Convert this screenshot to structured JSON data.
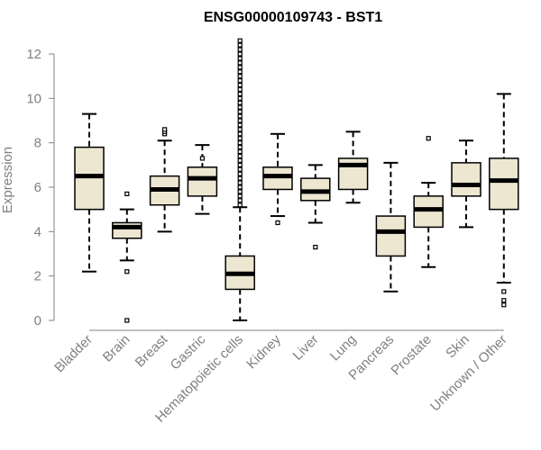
{
  "chart_data": {
    "type": "boxplot",
    "title": "ENSG00000109743 - BST1",
    "xlabel": "",
    "ylabel": "Expression",
    "ylim": [
      0,
      12
    ],
    "yticks": [
      "0",
      "2",
      "4",
      "6",
      "8",
      "10",
      "12"
    ],
    "categories": [
      "Bladder",
      "Brain",
      "Breast",
      "Gastric",
      "Hematopoietic cells",
      "Kidney",
      "Liver",
      "Lung",
      "Pancreas",
      "Prostate",
      "Skin",
      "Unknown / Other"
    ],
    "boxes": [
      {
        "category": "Bladder",
        "whisker_low": 2.2,
        "q1": 5.0,
        "median": 6.5,
        "q3": 7.8,
        "whisker_high": 9.3,
        "outliers": []
      },
      {
        "category": "Brain",
        "whisker_low": 2.7,
        "q1": 3.7,
        "median": 4.2,
        "q3": 4.4,
        "whisker_high": 5.0,
        "outliers": [
          0.0,
          2.2,
          5.7
        ]
      },
      {
        "category": "Breast",
        "whisker_low": 4.0,
        "q1": 5.2,
        "median": 5.9,
        "q3": 6.5,
        "whisker_high": 8.1,
        "outliers": [
          8.4,
          8.5,
          8.6
        ]
      },
      {
        "category": "Gastric",
        "whisker_low": 4.8,
        "q1": 5.6,
        "median": 6.4,
        "q3": 6.9,
        "whisker_high": 7.9,
        "outliers": [
          7.3
        ]
      },
      {
        "category": "Hematopoietic cells",
        "whisker_low": 0.0,
        "q1": 1.4,
        "median": 2.1,
        "q3": 2.9,
        "whisker_high": 5.1,
        "outliers": [
          5.2,
          5.4,
          5.6,
          5.8,
          6.0,
          6.2,
          6.4,
          6.6,
          6.8,
          7.0,
          7.2,
          7.4,
          7.6,
          7.8,
          8.0,
          8.2,
          8.4,
          8.6,
          8.8,
          9.0,
          9.2,
          9.4,
          9.6,
          9.8,
          10.0,
          10.2,
          10.4,
          10.6,
          10.8,
          11.0,
          11.2,
          11.4,
          11.6,
          11.8,
          12.0,
          12.2,
          12.4,
          12.6
        ]
      },
      {
        "category": "Kidney",
        "whisker_low": 4.7,
        "q1": 5.9,
        "median": 6.5,
        "q3": 6.9,
        "whisker_high": 8.4,
        "outliers": [
          4.4
        ]
      },
      {
        "category": "Liver",
        "whisker_low": 4.4,
        "q1": 5.4,
        "median": 5.8,
        "q3": 6.4,
        "whisker_high": 7.0,
        "outliers": [
          3.3
        ]
      },
      {
        "category": "Lung",
        "whisker_low": 5.3,
        "q1": 5.9,
        "median": 7.0,
        "q3": 7.3,
        "whisker_high": 8.5,
        "outliers": []
      },
      {
        "category": "Pancreas",
        "whisker_low": 1.3,
        "q1": 2.9,
        "median": 4.0,
        "q3": 4.7,
        "whisker_high": 7.1,
        "outliers": []
      },
      {
        "category": "Prostate",
        "whisker_low": 2.4,
        "q1": 4.2,
        "median": 5.0,
        "q3": 5.6,
        "whisker_high": 6.2,
        "outliers": [
          8.2
        ]
      },
      {
        "category": "Skin",
        "whisker_low": 4.2,
        "q1": 5.6,
        "median": 6.1,
        "q3": 7.1,
        "whisker_high": 8.1,
        "outliers": []
      },
      {
        "category": "Unknown / Other",
        "whisker_low": 1.7,
        "q1": 5.0,
        "median": 6.3,
        "q3": 7.3,
        "whisker_high": 10.2,
        "outliers": [
          0.7,
          0.9,
          1.3
        ]
      }
    ],
    "box_fill": "#ede6d1",
    "outline_color": "#000000",
    "axis_color": "#808080"
  }
}
